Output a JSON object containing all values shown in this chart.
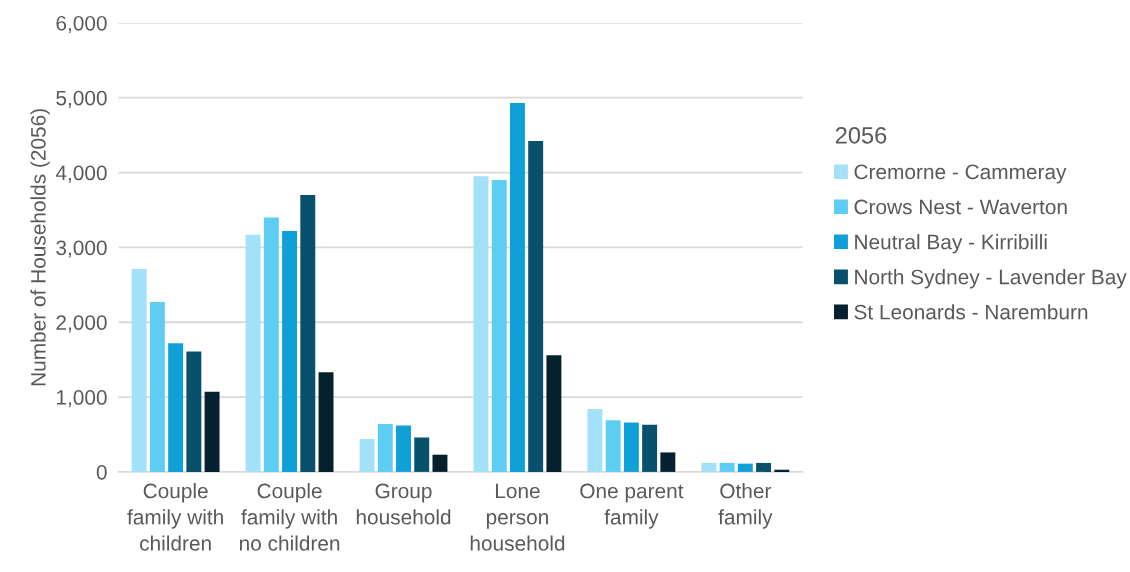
{
  "chart_data": {
    "type": "bar",
    "categories": [
      "Couple\nfamily with\nchildren",
      "Couple\nfamily with\nno children",
      "Group\nhousehold",
      "Lone\nperson\nhousehold",
      "One parent\nfamily",
      "Other\nfamily"
    ],
    "ylabel": "Number of Households (2056)",
    "legend_title": "2056",
    "series": [
      {
        "name": "Cremorne - Cammeray",
        "color": "#a3e1f9",
        "values": [
          2710,
          3170,
          440,
          3950,
          840,
          120
        ]
      },
      {
        "name": "Crows Nest - Waverton",
        "color": "#5ecdf4",
        "values": [
          2270,
          3400,
          640,
          3900,
          690,
          120
        ]
      },
      {
        "name": "Neutral Bay - Kirribilli",
        "color": "#0ea0d6",
        "values": [
          1720,
          3220,
          620,
          4930,
          660,
          110
        ]
      },
      {
        "name": "North Sydney - Lavender Bay",
        "color": "#08506b",
        "values": [
          1610,
          3700,
          460,
          4420,
          630,
          120
        ]
      },
      {
        "name": "St Leonards - Naremburn",
        "color": "#06212d",
        "values": [
          1070,
          1330,
          230,
          1560,
          260,
          30
        ]
      }
    ],
    "ylim": [
      0,
      6000
    ],
    "yticks": [
      {
        "value": 0,
        "label": "0"
      },
      {
        "value": 1000,
        "label": "1,000"
      },
      {
        "value": 2000,
        "label": "2,000"
      },
      {
        "value": 3000,
        "label": "3,000"
      },
      {
        "value": 4000,
        "label": "4,000"
      },
      {
        "value": 5000,
        "label": "5,000"
      },
      {
        "value": 6000,
        "label": "6,000"
      }
    ],
    "grid": "y",
    "legend": "right"
  }
}
